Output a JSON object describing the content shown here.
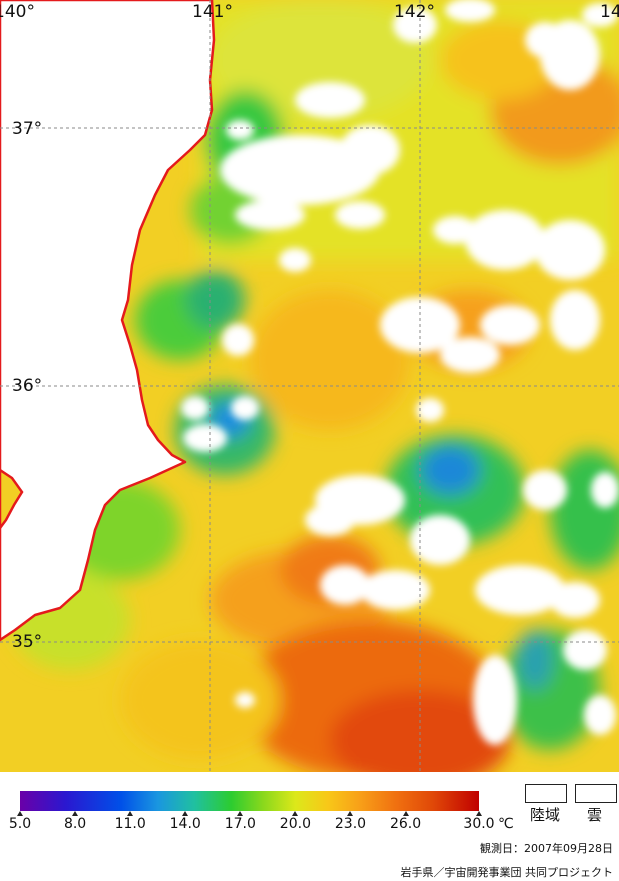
{
  "map": {
    "longitude_labels": [
      "140°",
      "141°",
      "142°",
      "14"
    ],
    "latitude_labels": [
      "37°",
      "36°",
      "35°"
    ],
    "coastline_color": "#e41a1c",
    "land_color": "#ffffff",
    "cloud_color": "#ffffff"
  },
  "colorbar": {
    "tick_labels": [
      "5.0",
      "8.0",
      "11.0",
      "14.0",
      "17.0",
      "20.0",
      "23.0",
      "26.0",
      "30.0"
    ],
    "unit": "℃",
    "min": 5.0,
    "max": 30.0
  },
  "legend": {
    "land_label": "陸域",
    "cloud_label": "雲"
  },
  "footer": {
    "observation_date": "観測日：2007年09月28日",
    "credit": "岩手県／宇宙開発事業団  共同プロジェクト"
  }
}
